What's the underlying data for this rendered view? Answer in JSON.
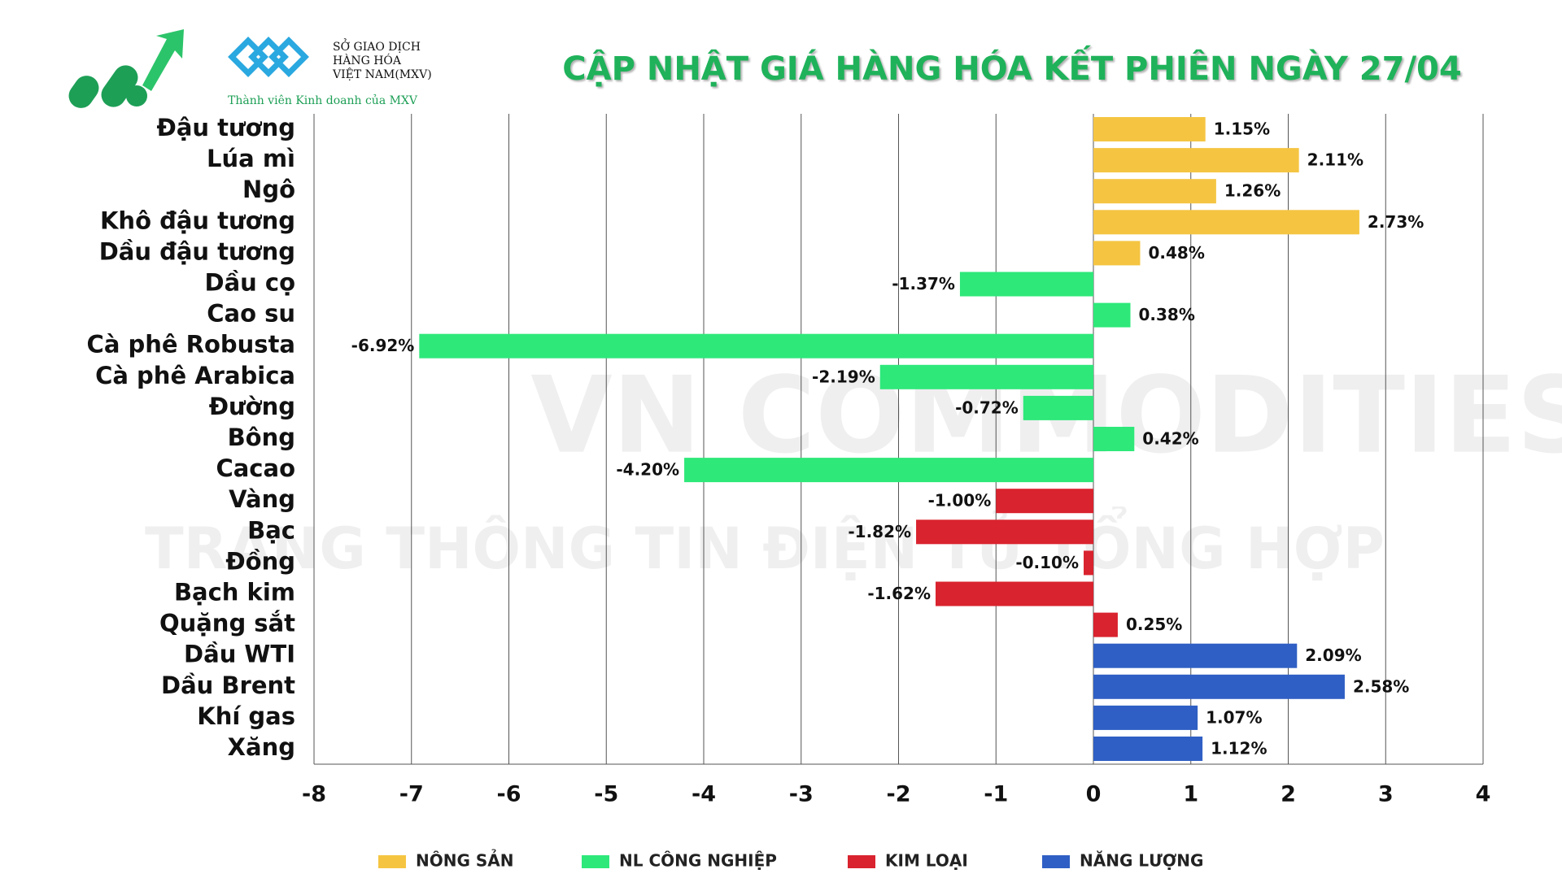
{
  "branding": {
    "exchange_name": [
      "SỞ GIAO DỊCH",
      "HÀNG HÓA",
      "VIỆT NAM(MXV)"
    ],
    "member_text": "Thành viên Kinh doanh của MXV",
    "watermark_main": "VN COMMODITIES",
    "watermark_sub": "TRANG THÔNG TIN ĐIỆN TỬ TỔNG HỢP"
  },
  "chart_data": {
    "type": "hbar",
    "title": "CẬP NHẬT GIÁ HÀNG HÓA KẾT PHIÊN NGÀY 27/04",
    "categories": [
      "Đậu tương",
      "Lúa mì",
      "Ngô",
      "Khô đậu tương",
      "Dầu đậu tương",
      "Dầu cọ",
      "Cao su",
      "Cà phê Robusta",
      "Cà phê Arabica",
      "Đường",
      "Bông",
      "Cacao",
      "Vàng",
      "Bạc",
      "Đồng",
      "Bạch kim",
      "Quặng sắt",
      "Dầu WTI",
      "Dầu Brent",
      "Khí gas",
      "Xăng"
    ],
    "series": [
      {
        "name": "NÔNG SẢN",
        "color": "#f5c542",
        "values": [
          1.15,
          2.11,
          1.26,
          2.73,
          0.48,
          null,
          null,
          null,
          null,
          null,
          null,
          null,
          null,
          null,
          null,
          null,
          null,
          null,
          null,
          null,
          null
        ],
        "value_labels": [
          "1.15%",
          "2.11%",
          "1.26%",
          "2.73%",
          "0.48%",
          null,
          null,
          null,
          null,
          null,
          null,
          null,
          null,
          null,
          null,
          null,
          null,
          null,
          null,
          null,
          null
        ]
      },
      {
        "name": "NL CÔNG NGHIỆP",
        "color": "#2ee87a",
        "values": [
          null,
          null,
          null,
          null,
          null,
          -1.37,
          0.38,
          -6.92,
          -2.19,
          -0.72,
          0.42,
          -4.2,
          null,
          null,
          null,
          null,
          null,
          null,
          null,
          null,
          null
        ],
        "value_labels": [
          null,
          null,
          null,
          null,
          null,
          "-1.37%",
          "0.38%",
          "-6.92%",
          "-2.19%",
          "-0.72%",
          "0.42%",
          "-4.20%",
          null,
          null,
          null,
          null,
          null,
          null,
          null,
          null,
          null
        ]
      },
      {
        "name": "KIM LOẠI",
        "color": "#d9232e",
        "values": [
          null,
          null,
          null,
          null,
          null,
          null,
          null,
          null,
          null,
          null,
          null,
          null,
          -1.0,
          -1.82,
          -0.1,
          -1.62,
          0.25,
          null,
          null,
          null,
          null
        ],
        "value_labels": [
          null,
          null,
          null,
          null,
          null,
          null,
          null,
          null,
          null,
          null,
          null,
          null,
          "-1.00%",
          "-1.82%",
          "-0.10%",
          "-1.62%",
          "0.25%",
          null,
          null,
          null,
          null
        ]
      },
      {
        "name": "NĂNG LƯỢNG",
        "color": "#2f5fc4",
        "values": [
          null,
          null,
          null,
          null,
          null,
          null,
          null,
          null,
          null,
          null,
          null,
          null,
          null,
          null,
          null,
          null,
          null,
          2.09,
          2.58,
          1.07,
          1.12
        ],
        "value_labels": [
          null,
          null,
          null,
          null,
          null,
          null,
          null,
          null,
          null,
          null,
          null,
          null,
          null,
          null,
          null,
          null,
          null,
          "2.09%",
          "2.58%",
          "1.07%",
          "1.12%"
        ]
      }
    ],
    "xlim": [
      -8,
      4
    ],
    "xticks": [
      -8,
      -7,
      -6,
      -5,
      -4,
      -3,
      -2,
      -1,
      0,
      1,
      2,
      3,
      4
    ],
    "grid": true,
    "legend": "bottom"
  }
}
